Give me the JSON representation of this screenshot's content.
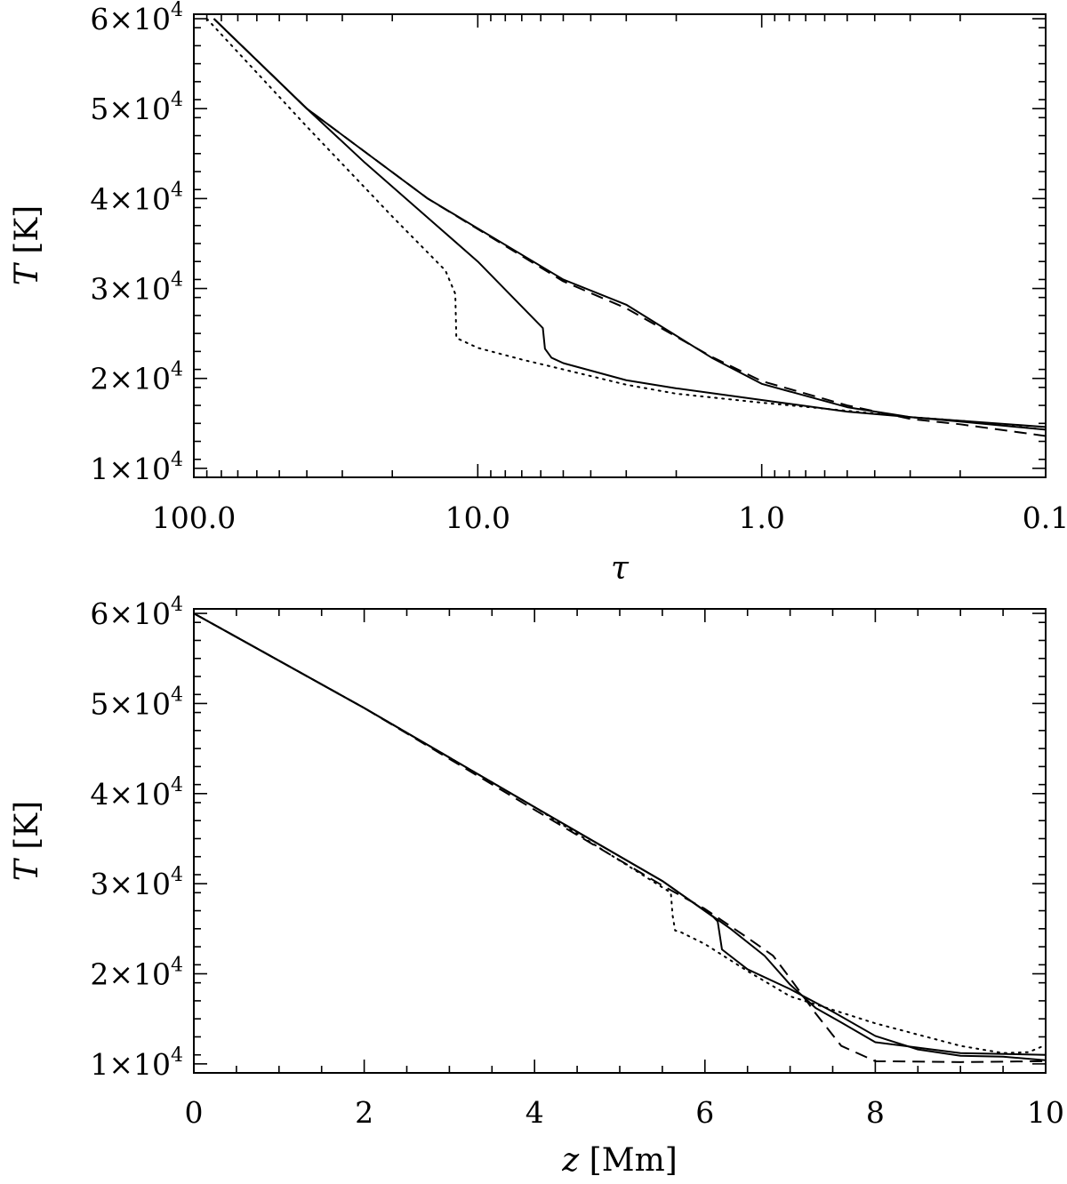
{
  "chart_data": [
    {
      "type": "line",
      "xlabel": "τ",
      "ylabel": {
        "symbol": "T",
        "unit": "[K]"
      },
      "xscale": "log",
      "xreversed": true,
      "xlim": [
        100.0,
        0.1
      ],
      "ylim": [
        9000,
        60500
      ],
      "xtick_labels": [
        "100.0",
        "10.0",
        "1.0",
        "0.1"
      ],
      "xtick_values": [
        100.0,
        10.0,
        1.0,
        0.1
      ],
      "ytick_values": [
        10000,
        20000,
        30000,
        40000,
        50000,
        60000
      ],
      "ytick_labels": [
        {
          "mantissa": "1×10",
          "exponent": "4"
        },
        {
          "mantissa": "2×10",
          "exponent": "4"
        },
        {
          "mantissa": "3×10",
          "exponent": "4"
        },
        {
          "mantissa": "4×10",
          "exponent": "4"
        },
        {
          "mantissa": "5×10",
          "exponent": "4"
        },
        {
          "mantissa": "6×10",
          "exponent": "4"
        }
      ],
      "series": [
        {
          "style": "solid",
          "x": [
            85,
            40,
            15,
            5,
            3,
            1.5,
            1,
            0.5,
            0.3,
            0.1
          ],
          "y": [
            60000,
            50000,
            40000,
            31000,
            28200,
            22300,
            19400,
            16800,
            15700,
            14600
          ]
        },
        {
          "style": "solid",
          "x": [
            85,
            40,
            25,
            10,
            7,
            5.9,
            5.8,
            5.5,
            5,
            3,
            2,
            1,
            0.5,
            0.3,
            0.2,
            0.1
          ],
          "y": [
            60000,
            50000,
            44000,
            33000,
            28000,
            25600,
            23300,
            22300,
            21700,
            19800,
            18900,
            17600,
            16300,
            15700,
            15200,
            14300
          ]
        },
        {
          "style": "dashed",
          "x": [
            85,
            40,
            15,
            5,
            3,
            1.5,
            1,
            0.5,
            0.3,
            0.2,
            0.1
          ],
          "y": [
            60000,
            50000,
            40000,
            30800,
            27800,
            22400,
            19700,
            17000,
            15500,
            14900,
            13600
          ]
        },
        {
          "style": "dotted",
          "x": [
            90,
            40,
            20,
            13,
            12,
            11.9,
            10,
            7,
            5,
            3,
            2,
            1,
            0.5,
            0.3,
            0.2,
            0.1
          ],
          "y": [
            60000,
            48000,
            38000,
            32000,
            29400,
            24500,
            23400,
            22100,
            21000,
            19300,
            18300,
            17300,
            16400,
            15700,
            15300,
            14300
          ]
        }
      ]
    },
    {
      "type": "line",
      "xlabel": {
        "symbol": "z",
        "unit": "[Mm]"
      },
      "ylabel": {
        "symbol": "T",
        "unit": "[K]"
      },
      "xlim": [
        0,
        10
      ],
      "ylim": [
        9000,
        60500
      ],
      "xtick_values": [
        0,
        2,
        4,
        6,
        8,
        10
      ],
      "xtick_labels": [
        "0",
        "2",
        "4",
        "6",
        "8",
        "10"
      ],
      "ytick_values": [
        10000,
        20000,
        30000,
        40000,
        50000,
        60000
      ],
      "ytick_labels": [
        {
          "mantissa": "1×10",
          "exponent": "4"
        },
        {
          "mantissa": "2×10",
          "exponent": "4"
        },
        {
          "mantissa": "3×10",
          "exponent": "4"
        },
        {
          "mantissa": "4×10",
          "exponent": "4"
        },
        {
          "mantissa": "5×10",
          "exponent": "4"
        },
        {
          "mantissa": "6×10",
          "exponent": "4"
        }
      ],
      "series": [
        {
          "style": "solid",
          "x": [
            0,
            2,
            4,
            5.5,
            6,
            6.3,
            6.7,
            7,
            7.3,
            7.6,
            8,
            9,
            10
          ],
          "y": [
            60000,
            49500,
            38500,
            30300,
            27000,
            25000,
            22000,
            18800,
            16200,
            14600,
            12400,
            11200,
            11000
          ]
        },
        {
          "style": "solid",
          "x": [
            0,
            2,
            4,
            5.5,
            6.1,
            6.15,
            6.2,
            6.5,
            7,
            7.5,
            8,
            8.5,
            9,
            9.5,
            10
          ],
          "y": [
            60000,
            49500,
            38500,
            30300,
            26300,
            25800,
            22700,
            20500,
            18300,
            15800,
            13100,
            11600,
            10900,
            10800,
            10400
          ]
        },
        {
          "style": "dashed",
          "x": [
            0,
            2,
            4,
            5.5,
            6,
            6.5,
            6.8,
            7,
            7.3,
            7.6,
            8,
            9,
            10
          ],
          "y": [
            60000,
            49500,
            38200,
            29800,
            27200,
            24000,
            22000,
            19500,
            15600,
            12000,
            10300,
            10200,
            10300
          ]
        },
        {
          "style": "dotted",
          "x": [
            0,
            2,
            4,
            5.6,
            5.62,
            5.65,
            5.7,
            6,
            6.5,
            7,
            7.5,
            8,
            9,
            9.5,
            9.8,
            10
          ],
          "y": [
            60000,
            49500,
            38500,
            29000,
            26500,
            24800,
            24700,
            23300,
            20300,
            17500,
            16000,
            14500,
            12000,
            11200,
            11300,
            12100
          ]
        }
      ]
    }
  ]
}
